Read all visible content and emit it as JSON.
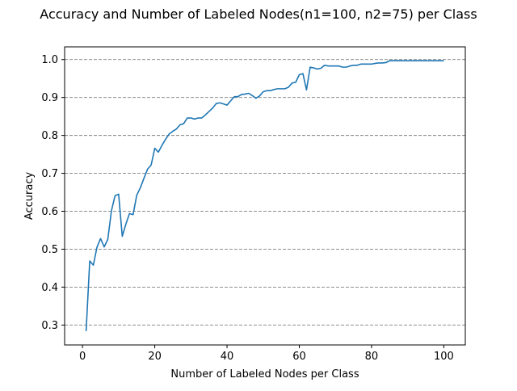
{
  "chart_data": {
    "type": "line",
    "title": "Accuracy and Number of Labeled Nodes(n1=100, n2=75) per Class",
    "xlabel": "Number of Labeled Nodes per Class",
    "ylabel": "Accuracy",
    "xlim": [
      -4.95,
      105.95
    ],
    "ylim": [
      0.2475,
      1.0335
    ],
    "xticks": [
      0,
      20,
      40,
      60,
      80,
      100
    ],
    "xtick_labels": [
      "0",
      "20",
      "40",
      "60",
      "80",
      "100"
    ],
    "yticks": [
      0.3,
      0.4,
      0.5,
      0.6,
      0.7,
      0.8,
      0.9,
      1.0
    ],
    "ytick_labels": [
      "0.3",
      "0.4",
      "0.5",
      "0.6",
      "0.7",
      "0.8",
      "0.9",
      "1.0"
    ],
    "grid": "horizontal dashed",
    "line_color": "#1f77b4",
    "grid_color": "#808080",
    "series": [
      {
        "x": [
          1,
          2,
          3,
          4,
          5,
          6,
          7,
          8,
          9,
          10,
          11,
          12,
          13,
          14,
          15,
          16,
          17,
          18,
          19,
          20,
          21,
          22,
          23,
          24,
          25,
          26,
          27,
          28,
          29,
          30,
          31,
          32,
          33,
          34,
          35,
          36,
          37,
          38,
          39,
          40,
          41,
          42,
          43,
          44,
          45,
          46,
          47,
          48,
          49,
          50,
          51,
          52,
          53,
          54,
          55,
          56,
          57,
          58,
          59,
          60,
          61,
          62,
          63,
          64,
          65,
          66,
          67,
          68,
          69,
          70,
          71,
          72,
          73,
          74,
          75,
          76,
          77,
          78,
          79,
          80,
          81,
          82,
          83,
          84,
          85,
          86,
          87,
          88,
          89,
          90,
          91,
          92,
          93,
          94,
          95,
          96,
          97,
          98,
          99,
          100
        ],
        "y": [
          0.284,
          0.469,
          0.458,
          0.505,
          0.528,
          0.506,
          0.526,
          0.601,
          0.641,
          0.645,
          0.534,
          0.566,
          0.594,
          0.591,
          0.642,
          0.662,
          0.687,
          0.711,
          0.722,
          0.766,
          0.756,
          0.774,
          0.79,
          0.804,
          0.811,
          0.817,
          0.828,
          0.831,
          0.846,
          0.846,
          0.843,
          0.846,
          0.846,
          0.854,
          0.863,
          0.872,
          0.884,
          0.886,
          0.883,
          0.88,
          0.891,
          0.902,
          0.902,
          0.908,
          0.909,
          0.911,
          0.905,
          0.898,
          0.904,
          0.915,
          0.918,
          0.918,
          0.921,
          0.923,
          0.923,
          0.923,
          0.927,
          0.938,
          0.94,
          0.96,
          0.963,
          0.92,
          0.98,
          0.978,
          0.975,
          0.977,
          0.985,
          0.983,
          0.983,
          0.983,
          0.983,
          0.98,
          0.98,
          0.983,
          0.985,
          0.985,
          0.988,
          0.988,
          0.988,
          0.988,
          0.99,
          0.991,
          0.991,
          0.992,
          0.997,
          0.997,
          0.997,
          0.997,
          0.997,
          0.997,
          0.997,
          0.997,
          0.997,
          0.997,
          0.997,
          0.997,
          0.997,
          0.997,
          0.997,
          0.997
        ]
      }
    ]
  }
}
